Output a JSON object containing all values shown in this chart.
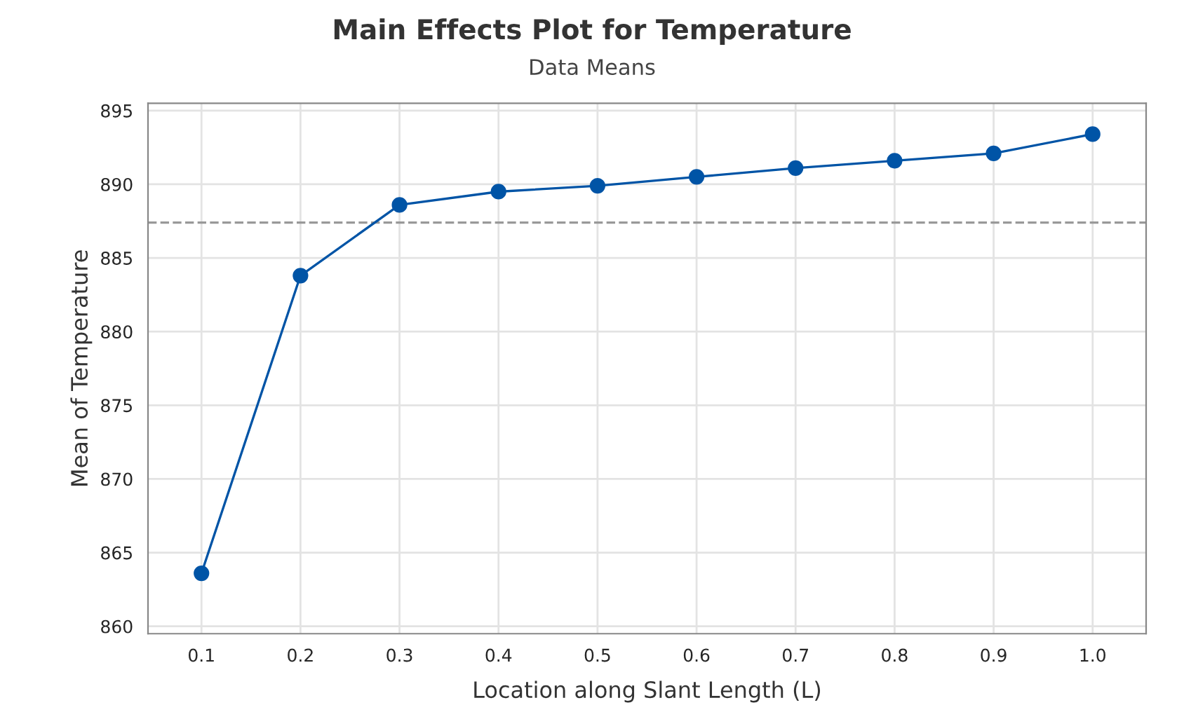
{
  "chart_data": {
    "type": "line",
    "title": "Main Effects Plot for Temperature",
    "subtitle": "Data Means",
    "xlabel": "Location along Slant Length (L)",
    "ylabel": "Mean of Temperature",
    "categories": [
      "0.1",
      "0.2",
      "0.3",
      "0.4",
      "0.5",
      "0.6",
      "0.7",
      "0.8",
      "0.9",
      "1.0"
    ],
    "series": [
      {
        "color": "#0054a6",
        "values": [
          863.6,
          883.8,
          888.6,
          889.5,
          889.9,
          890.5,
          891.1,
          891.6,
          892.1,
          893.4
        ]
      }
    ],
    "ylim": [
      859.5,
      895.5
    ],
    "yticks": [
      860,
      865,
      870,
      875,
      880,
      885,
      890,
      895
    ],
    "grid": true,
    "marker": "circle",
    "line_style": "solid",
    "ref_lines": [
      {
        "axis": "y",
        "value": 887.4,
        "color": "#999999",
        "line_style": "dashed"
      }
    ]
  }
}
